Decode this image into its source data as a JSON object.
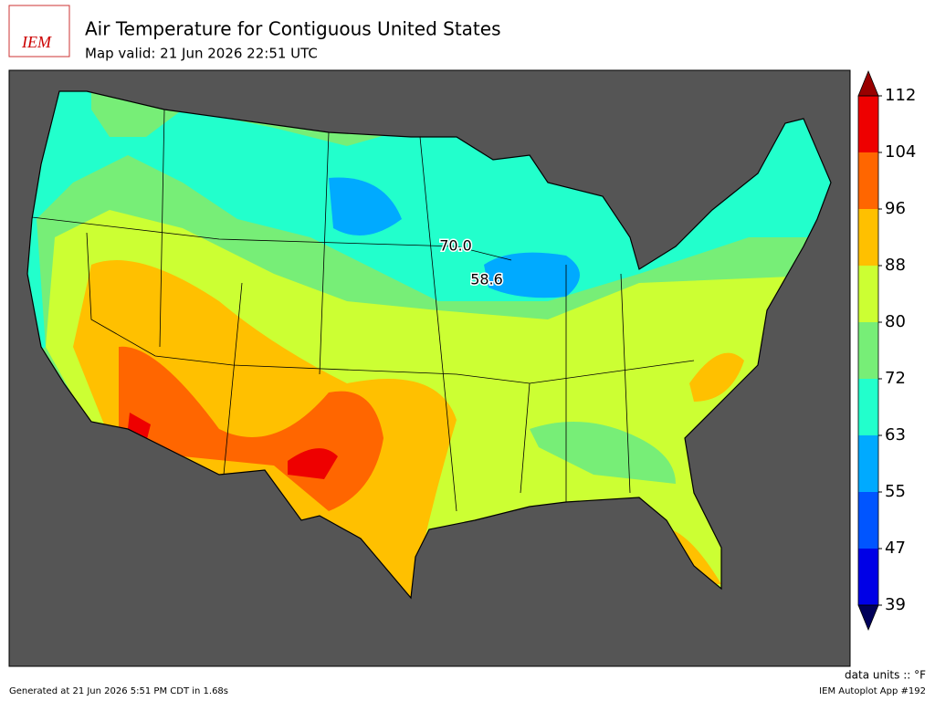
{
  "header": {
    "title": "Air Temperature for Contiguous United States",
    "subtitle": "Map valid: 21 Jun 2026 22:51 UTC",
    "logo": "IEM"
  },
  "map": {
    "contour_labels": [
      "70.0",
      "58.6"
    ]
  },
  "colorbar": {
    "ticks": [
      39,
      47,
      55,
      63,
      72,
      80,
      88,
      96,
      104,
      112
    ],
    "colors": [
      "#0000e6",
      "#0055ff",
      "#00aaff",
      "#22ffcc",
      "#77ee77",
      "#ccff33",
      "#ffc000",
      "#ff6600",
      "#ee0000"
    ],
    "under_color": "#00005a",
    "over_color": "#990000",
    "units": "data units :: °F"
  },
  "footer": {
    "generated": "Generated at 21 Jun 2026 5:51 PM CDT in 1.68s",
    "app": "IEM Autoplot App #192"
  }
}
